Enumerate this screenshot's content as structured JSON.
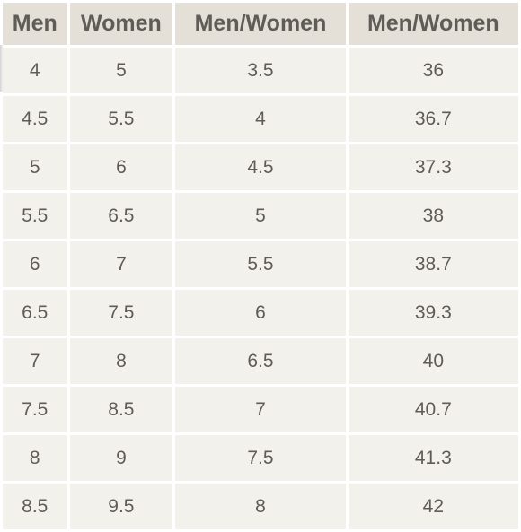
{
  "table": {
    "headers": [
      "Men",
      "Women",
      "Men/Women",
      "Men/Women"
    ],
    "rows": [
      [
        "4",
        "5",
        "3.5",
        "36"
      ],
      [
        "4.5",
        "5.5",
        "4",
        "36.7"
      ],
      [
        "5",
        "6",
        "4.5",
        "37.3"
      ],
      [
        "5.5",
        "6.5",
        "5",
        "38"
      ],
      [
        "6",
        "7",
        "5.5",
        "38.7"
      ],
      [
        "6.5",
        "7.5",
        "6",
        "39.3"
      ],
      [
        "7",
        "8",
        "6.5",
        "40"
      ],
      [
        "7.5",
        "8.5",
        "7",
        "40.7"
      ],
      [
        "8",
        "9",
        "7.5",
        "41.3"
      ],
      [
        "8.5",
        "9.5",
        "8",
        "42"
      ]
    ]
  },
  "colors": {
    "header_bg": "#e4e0d8",
    "cell_bg": "#f3f1ec",
    "text": "#5f5c58",
    "grid": "#ffffff"
  }
}
